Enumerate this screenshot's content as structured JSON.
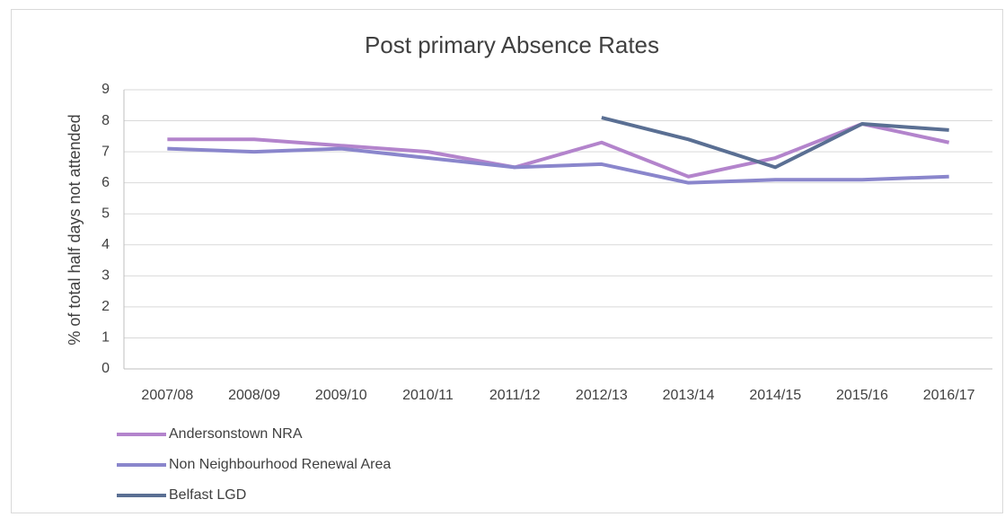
{
  "chart_data": {
    "type": "line",
    "title": "Post primary Absence Rates",
    "y_label": "% of total half days not attended",
    "categories": [
      "2007/08",
      "2008/09",
      "2009/10",
      "2010/11",
      "2011/12",
      "2012/13",
      "2013/14",
      "2014/15",
      "2015/16",
      "2016/17"
    ],
    "series": [
      {
        "name": "Andersonstown NRA",
        "color": "#b384cc",
        "values": [
          7.4,
          7.4,
          7.2,
          7.0,
          6.5,
          7.3,
          6.2,
          6.8,
          7.9,
          7.3
        ]
      },
      {
        "name": "Non Neighbourhood Renewal Area",
        "color": "#8a86cc",
        "values": [
          7.1,
          7.0,
          7.1,
          6.8,
          6.5,
          6.6,
          6.0,
          6.1,
          6.1,
          6.2
        ]
      },
      {
        "name": "Belfast LGD",
        "color": "#5a6f93",
        "values": [
          null,
          null,
          null,
          null,
          null,
          8.1,
          7.4,
          6.5,
          7.9,
          7.7
        ]
      }
    ],
    "ylim": [
      0,
      9
    ],
    "yticks": [
      0,
      1,
      2,
      3,
      4,
      5,
      6,
      7,
      8,
      9
    ],
    "grid": true,
    "legend": "bottom-left"
  }
}
